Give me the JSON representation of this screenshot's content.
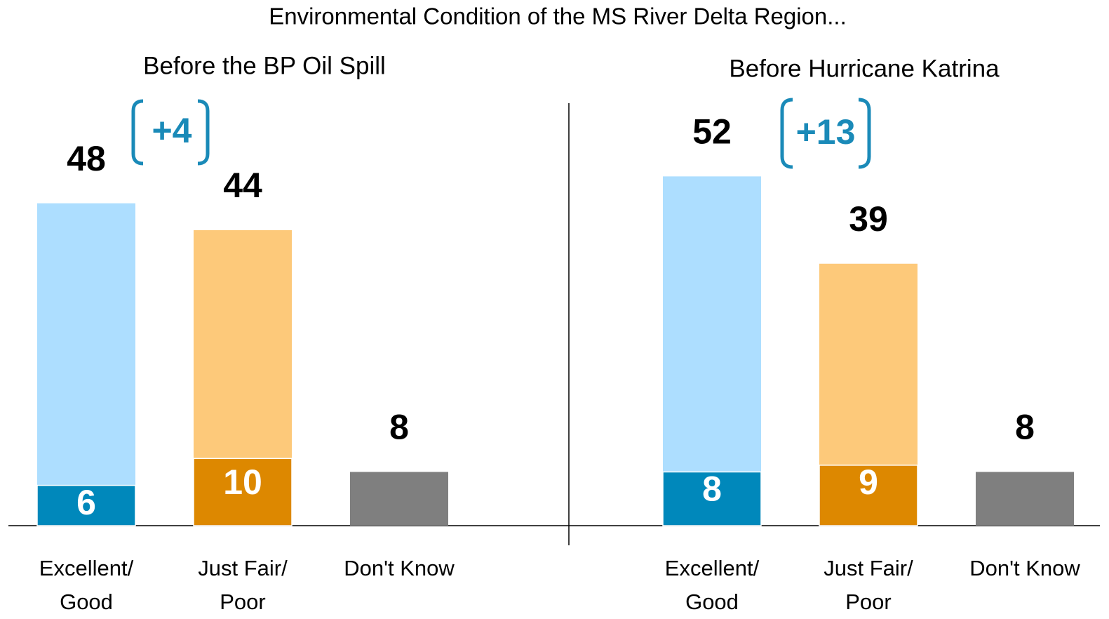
{
  "title": "Environmental Condition of the MS River Delta Region...",
  "chart_data": [
    {
      "type": "bar",
      "subtitle": "Before the BP Oil Spill",
      "categories": [
        "Excellent/\nGood",
        "Just Fair/\nPoor",
        "Don't Know"
      ],
      "values": [
        48,
        44,
        8
      ],
      "inner_values": [
        6,
        10,
        null
      ],
      "colors": [
        "#addeff",
        "#fdc97a",
        "#7f7f7f"
      ],
      "inner_colors": [
        "#0088bb",
        "#dd8800",
        null
      ],
      "annotation": "+4"
    },
    {
      "type": "bar",
      "subtitle": "Before Hurricane Katrina",
      "categories": [
        "Excellent/\nGood",
        "Just Fair/\nPoor",
        "Don't Know"
      ],
      "values": [
        52,
        39,
        8
      ],
      "inner_values": [
        8,
        9,
        null
      ],
      "colors": [
        "#addeff",
        "#fdc97a",
        "#7f7f7f"
      ],
      "inner_colors": [
        "#0088bb",
        "#dd8800",
        null
      ],
      "annotation": "+13"
    }
  ]
}
